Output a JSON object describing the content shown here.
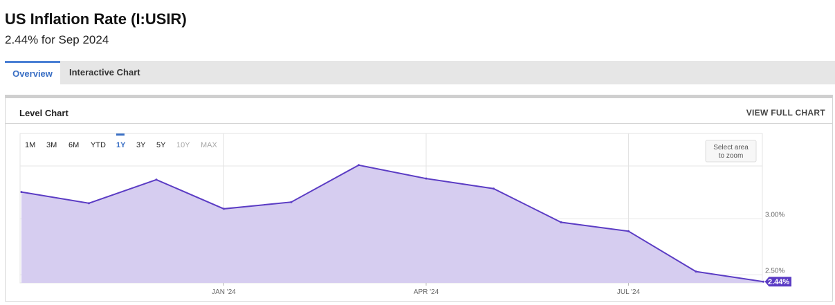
{
  "header": {
    "title": "US Inflation Rate (I:USIR)",
    "subtitle": "2.44% for Sep 2024"
  },
  "tabs": [
    {
      "label": "Overview",
      "active": true
    },
    {
      "label": "Interactive Chart",
      "active": false
    }
  ],
  "panel": {
    "title": "Level Chart",
    "full_chart_label": "VIEW FULL CHART"
  },
  "range_buttons": [
    {
      "label": "1M",
      "state": "enabled"
    },
    {
      "label": "3M",
      "state": "enabled"
    },
    {
      "label": "6M",
      "state": "enabled"
    },
    {
      "label": "YTD",
      "state": "enabled"
    },
    {
      "label": "1Y",
      "state": "selected"
    },
    {
      "label": "3Y",
      "state": "enabled"
    },
    {
      "label": "5Y",
      "state": "enabled"
    },
    {
      "label": "10Y",
      "state": "disabled"
    },
    {
      "label": "MAX",
      "state": "disabled"
    }
  ],
  "zoom_hint": {
    "line1": "Select area",
    "line2": "to zoom"
  },
  "colors": {
    "line": "#5b3cc4",
    "fill": "#d6cdf0",
    "accent": "#3a6fc4",
    "badge": "#5b3cc4"
  },
  "chart_data": {
    "type": "area",
    "title": "",
    "series": [
      {
        "x": [
          "2023-10",
          "2023-11",
          "2023-12",
          "2024-01",
          "2024-02",
          "2024-03",
          "2024-04",
          "2024-05",
          "2024-06",
          "2024-07",
          "2024-08",
          "2024-09"
        ],
        "values": [
          3.24,
          3.14,
          3.35,
          3.09,
          3.15,
          3.48,
          3.36,
          3.27,
          2.97,
          2.89,
          2.53,
          2.44
        ]
      }
    ],
    "x_tick_labels": [
      {
        "x": "2024-01",
        "label": "JAN '24"
      },
      {
        "x": "2024-04",
        "label": "APR '24"
      },
      {
        "x": "2024-07",
        "label": "JUL '24"
      }
    ],
    "y_tick_labels": [
      {
        "value": 3.0,
        "label": "3.00%"
      },
      {
        "value": 2.5,
        "label": "2.50%"
      }
    ],
    "last_value_label": "2.44%",
    "ylim": [
      2.4,
      3.52
    ],
    "grid": true,
    "y_axis_side": "right"
  }
}
